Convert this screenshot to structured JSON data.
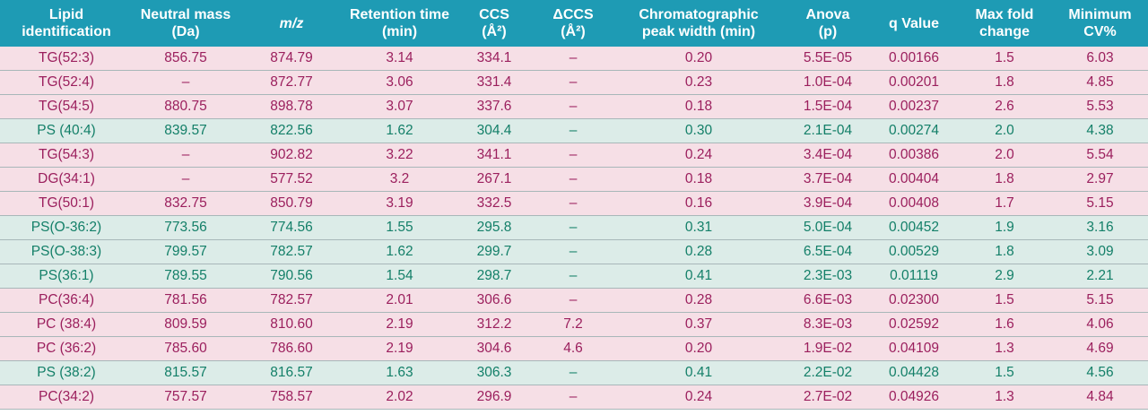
{
  "headers": [
    "Lipid identification",
    "Neutral mass (Da)",
    "m/z",
    "Retention time (min)",
    "CCS (Å²)",
    "ΔCCS (Å²)",
    "Chromatographic peak width (min)",
    "Anova (p)",
    "q Value",
    "Max fold change",
    "Minimum CV%"
  ],
  "header_lines": [
    [
      "Lipid",
      "identification"
    ],
    [
      "Neutral mass",
      "(Da)"
    ],
    [
      "m/z"
    ],
    [
      "Retention time",
      "(min)"
    ],
    [
      "CCS",
      "(Å²)"
    ],
    [
      "ΔCCS",
      "(Å²)"
    ],
    [
      "Chromatographic",
      "peak width (min)"
    ],
    [
      "Anova",
      "(p)"
    ],
    [
      "q Value"
    ],
    [
      "Max fold",
      "change"
    ],
    [
      "Minimum",
      "CV%"
    ]
  ],
  "colors": {
    "header_bg": "#1e9bb4",
    "pink_row_bg": "#f6dfe6",
    "pink_row_text": "#9b1f5d",
    "green_row_bg": "#dcece8",
    "green_row_text": "#137f68"
  },
  "rows": [
    {
      "group": "tg",
      "cells": [
        "TG(52:3)",
        "856.75",
        "874.79",
        "3.14",
        "334.1",
        "–",
        "0.20",
        "5.5E-05",
        "0.00166",
        "1.5",
        "6.03"
      ]
    },
    {
      "group": "tg",
      "cells": [
        "TG(52:4)",
        "–",
        "872.77",
        "3.06",
        "331.4",
        "–",
        "0.23",
        "1.0E-04",
        "0.00201",
        "1.8",
        "4.85"
      ]
    },
    {
      "group": "tg",
      "cells": [
        "TG(54:5)",
        "880.75",
        "898.78",
        "3.07",
        "337.6",
        "–",
        "0.18",
        "1.5E-04",
        "0.00237",
        "2.6",
        "5.53"
      ]
    },
    {
      "group": "ps",
      "cells": [
        "PS (40:4)",
        "839.57",
        "822.56",
        "1.62",
        "304.4",
        "–",
        "0.30",
        "2.1E-04",
        "0.00274",
        "2.0",
        "4.38"
      ]
    },
    {
      "group": "tg",
      "cells": [
        "TG(54:3)",
        "–",
        "902.82",
        "3.22",
        "341.1",
        "–",
        "0.24",
        "3.4E-04",
        "0.00386",
        "2.0",
        "5.54"
      ]
    },
    {
      "group": "tg",
      "cells": [
        "DG(34:1)",
        "–",
        "577.52",
        "3.2",
        "267.1",
        "–",
        "0.18",
        "3.7E-04",
        "0.00404",
        "1.8",
        "2.97"
      ]
    },
    {
      "group": "tg",
      "cells": [
        "TG(50:1)",
        "832.75",
        "850.79",
        "3.19",
        "332.5",
        "–",
        "0.16",
        "3.9E-04",
        "0.00408",
        "1.7",
        "5.15"
      ]
    },
    {
      "group": "ps",
      "cells": [
        "PS(O-36:2)",
        "773.56",
        "774.56",
        "1.55",
        "295.8",
        "–",
        "0.31",
        "5.0E-04",
        "0.00452",
        "1.9",
        "3.16"
      ]
    },
    {
      "group": "ps",
      "cells": [
        "PS(O-38:3)",
        "799.57",
        "782.57",
        "1.62",
        "299.7",
        "–",
        "0.28",
        "6.5E-04",
        "0.00529",
        "1.8",
        "3.09"
      ]
    },
    {
      "group": "ps",
      "cells": [
        "PS(36:1)",
        "789.55",
        "790.56",
        "1.54",
        "298.7",
        "–",
        "0.41",
        "2.3E-03",
        "0.01119",
        "2.9",
        "2.21"
      ]
    },
    {
      "group": "tg",
      "cells": [
        "PC(36:4)",
        "781.56",
        "782.57",
        "2.01",
        "306.6",
        "–",
        "0.28",
        "6.6E-03",
        "0.02300",
        "1.5",
        "5.15"
      ]
    },
    {
      "group": "tg",
      "cells": [
        "PC (38:4)",
        "809.59",
        "810.60",
        "2.19",
        "312.2",
        "7.2",
        "0.37",
        "8.3E-03",
        "0.02592",
        "1.6",
        "4.06"
      ]
    },
    {
      "group": "tg",
      "cells": [
        "PC (36:2)",
        "785.60",
        "786.60",
        "2.19",
        "304.6",
        "4.6",
        "0.20",
        "1.9E-02",
        "0.04109",
        "1.3",
        "4.69"
      ]
    },
    {
      "group": "ps",
      "cells": [
        "PS (38:2)",
        "815.57",
        "816.57",
        "1.63",
        "306.3",
        "–",
        "0.41",
        "2.2E-02",
        "0.04428",
        "1.5",
        "4.56"
      ]
    },
    {
      "group": "tg",
      "cells": [
        "PC(34:2)",
        "757.57",
        "758.57",
        "2.02",
        "296.9",
        "–",
        "0.24",
        "2.7E-02",
        "0.04926",
        "1.3",
        "4.84"
      ]
    }
  ]
}
